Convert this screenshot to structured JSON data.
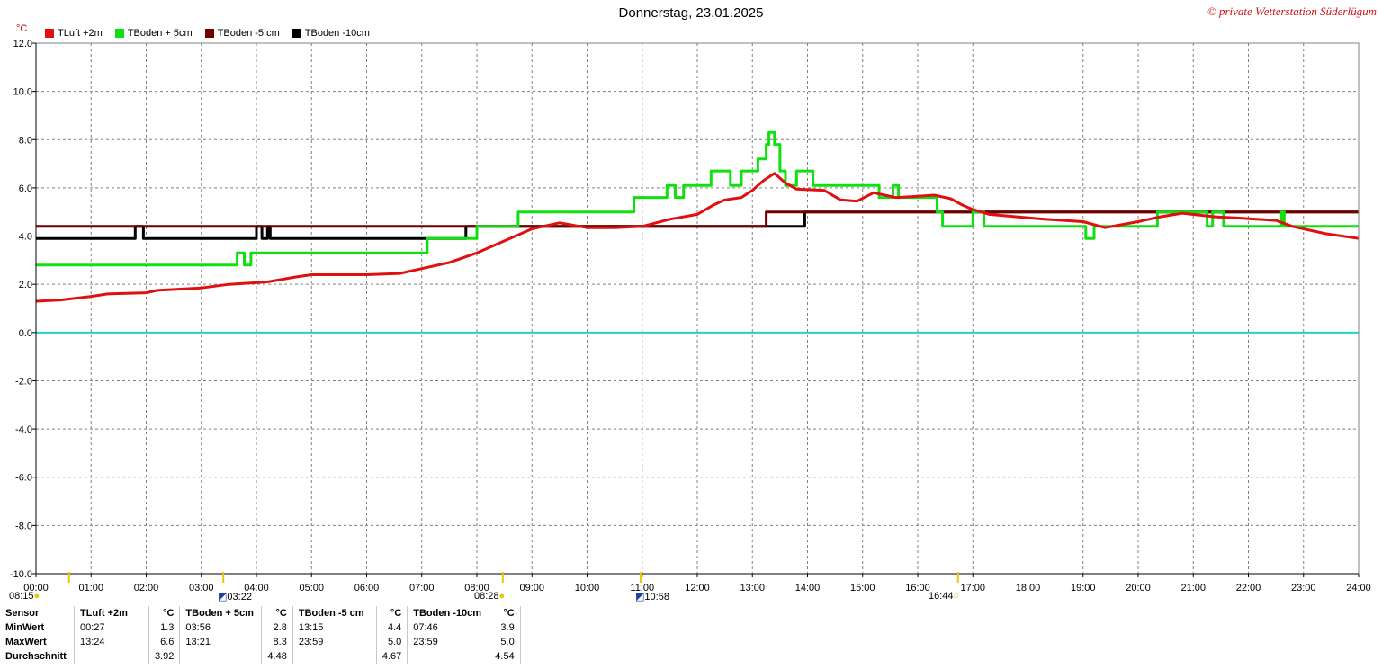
{
  "header": {
    "title": "Donnerstag, 23.01.2025",
    "copyright": "© private Wetterstation Süderlügum",
    "unit": "°C"
  },
  "colors": {
    "tluft": "#e01010",
    "tboden_plus5": "#10e010",
    "tboden_minus5": "#700000",
    "tboden_minus10": "#000000",
    "zero_line": "#20d0d0",
    "grid": "#808080"
  },
  "legend": [
    {
      "label": "TLuft +2m",
      "color": "#e01010"
    },
    {
      "label": "TBoden + 5cm",
      "color": "#10e010"
    },
    {
      "label": "TBoden -5 cm",
      "color": "#700000"
    },
    {
      "label": "TBoden -10cm",
      "color": "#000000"
    }
  ],
  "sun_markers": [
    {
      "label": "08:15",
      "icon": "sun-icon",
      "hour": 0.6
    },
    {
      "label": "03:22",
      "icon": "moon-icon",
      "hour": 3.4
    },
    {
      "label": "08:28",
      "icon": "sunrise-icon",
      "hour": 8.47
    },
    {
      "label": "10:58",
      "icon": "moon-icon",
      "hour": 10.97
    },
    {
      "label": "16:44",
      "icon": "sunset-icon",
      "hour": 16.73
    }
  ],
  "chart_data": {
    "type": "line",
    "title": "Donnerstag, 23.01.2025",
    "ylabel": "°C",
    "xlim": [
      0,
      24
    ],
    "ylim": [
      -10,
      12
    ],
    "grid": true,
    "legend_position": "top-left",
    "x_ticks": [
      "00:00",
      "01:00",
      "02:00",
      "03:00",
      "04:00",
      "05:00",
      "06:00",
      "07:00",
      "08:00",
      "09:00",
      "10:00",
      "11:00",
      "12:00",
      "13:00",
      "14:00",
      "15:00",
      "16:00",
      "17:00",
      "18:00",
      "19:00",
      "20:00",
      "21:00",
      "22:00",
      "23:00",
      "24:00"
    ],
    "y_ticks": [
      "12.0",
      "10.0",
      "8.0",
      "6.0",
      "4.0",
      "2.0",
      "0.0",
      "-2.0",
      "-4.0",
      "-6.0",
      "-8.0",
      "-10.0"
    ],
    "series": [
      {
        "name": "TLuft +2m",
        "color": "#e01010",
        "step": false,
        "points": [
          [
            0,
            1.3
          ],
          [
            0.45,
            1.35
          ],
          [
            1,
            1.5
          ],
          [
            1.3,
            1.6
          ],
          [
            2,
            1.65
          ],
          [
            2.2,
            1.75
          ],
          [
            3,
            1.85
          ],
          [
            3.5,
            2.0
          ],
          [
            4.2,
            2.1
          ],
          [
            4.7,
            2.3
          ],
          [
            5,
            2.4
          ],
          [
            6,
            2.4
          ],
          [
            6.6,
            2.45
          ],
          [
            7,
            2.65
          ],
          [
            7.5,
            2.9
          ],
          [
            8,
            3.3
          ],
          [
            8.5,
            3.8
          ],
          [
            9,
            4.3
          ],
          [
            9.5,
            4.55
          ],
          [
            10,
            4.35
          ],
          [
            10.5,
            4.35
          ],
          [
            11,
            4.4
          ],
          [
            11.5,
            4.7
          ],
          [
            12,
            4.9
          ],
          [
            12.3,
            5.3
          ],
          [
            12.5,
            5.5
          ],
          [
            12.8,
            5.6
          ],
          [
            13,
            5.9
          ],
          [
            13.2,
            6.3
          ],
          [
            13.4,
            6.6
          ],
          [
            13.6,
            6.2
          ],
          [
            13.8,
            5.95
          ],
          [
            14.3,
            5.9
          ],
          [
            14.6,
            5.5
          ],
          [
            14.9,
            5.45
          ],
          [
            15.2,
            5.8
          ],
          [
            15.6,
            5.6
          ],
          [
            16,
            5.65
          ],
          [
            16.3,
            5.7
          ],
          [
            16.6,
            5.55
          ],
          [
            16.8,
            5.3
          ],
          [
            17,
            5.1
          ],
          [
            17.3,
            4.9
          ],
          [
            17.8,
            4.8
          ],
          [
            18.3,
            4.7
          ],
          [
            19,
            4.6
          ],
          [
            19.4,
            4.35
          ],
          [
            20,
            4.6
          ],
          [
            20.4,
            4.8
          ],
          [
            20.8,
            4.95
          ],
          [
            21.4,
            4.8
          ],
          [
            21.8,
            4.75
          ],
          [
            22.5,
            4.65
          ],
          [
            22.8,
            4.4
          ],
          [
            23.4,
            4.1
          ],
          [
            24,
            3.9
          ]
        ]
      },
      {
        "name": "TBoden + 5cm",
        "color": "#10e010",
        "step": true,
        "points": [
          [
            0,
            2.8
          ],
          [
            3.65,
            2.8
          ],
          [
            3.65,
            3.3
          ],
          [
            3.78,
            3.3
          ],
          [
            3.78,
            2.8
          ],
          [
            3.9,
            2.8
          ],
          [
            3.9,
            3.3
          ],
          [
            7.1,
            3.3
          ],
          [
            7.1,
            3.9
          ],
          [
            8.0,
            3.9
          ],
          [
            8.0,
            4.4
          ],
          [
            8.75,
            4.4
          ],
          [
            8.75,
            5.0
          ],
          [
            10.85,
            5.0
          ],
          [
            10.85,
            5.6
          ],
          [
            11.45,
            5.6
          ],
          [
            11.45,
            6.1
          ],
          [
            11.6,
            6.1
          ],
          [
            11.6,
            5.6
          ],
          [
            11.75,
            5.6
          ],
          [
            11.75,
            6.1
          ],
          [
            12.25,
            6.1
          ],
          [
            12.25,
            6.7
          ],
          [
            12.6,
            6.7
          ],
          [
            12.6,
            6.1
          ],
          [
            12.8,
            6.1
          ],
          [
            12.8,
            6.7
          ],
          [
            13.1,
            6.7
          ],
          [
            13.1,
            7.2
          ],
          [
            13.25,
            7.2
          ],
          [
            13.25,
            7.8
          ],
          [
            13.3,
            7.8
          ],
          [
            13.3,
            8.3
          ],
          [
            13.4,
            8.3
          ],
          [
            13.4,
            7.8
          ],
          [
            13.5,
            7.8
          ],
          [
            13.5,
            6.7
          ],
          [
            13.6,
            6.7
          ],
          [
            13.6,
            6.1
          ],
          [
            13.8,
            6.1
          ],
          [
            13.8,
            6.7
          ],
          [
            14.1,
            6.7
          ],
          [
            14.1,
            6.1
          ],
          [
            15.3,
            6.1
          ],
          [
            15.3,
            5.6
          ],
          [
            15.55,
            5.6
          ],
          [
            15.55,
            6.1
          ],
          [
            15.65,
            6.1
          ],
          [
            15.65,
            5.6
          ],
          [
            16.35,
            5.6
          ],
          [
            16.35,
            5.0
          ],
          [
            16.45,
            5.0
          ],
          [
            16.45,
            4.4
          ],
          [
            17.0,
            4.4
          ],
          [
            17.0,
            5.0
          ],
          [
            17.2,
            5.0
          ],
          [
            17.2,
            4.4
          ],
          [
            18.0,
            4.4
          ],
          [
            18.9,
            4.4
          ],
          [
            19.05,
            4.4
          ],
          [
            19.05,
            3.9
          ],
          [
            19.2,
            3.9
          ],
          [
            19.2,
            4.4
          ],
          [
            20.35,
            4.4
          ],
          [
            20.35,
            5.0
          ],
          [
            21.25,
            5.0
          ],
          [
            21.25,
            4.4
          ],
          [
            21.35,
            4.4
          ],
          [
            21.35,
            5.0
          ],
          [
            21.55,
            5.0
          ],
          [
            21.55,
            4.4
          ],
          [
            22.6,
            4.4
          ],
          [
            22.6,
            5.0
          ],
          [
            22.65,
            5.0
          ],
          [
            22.65,
            4.4
          ],
          [
            24,
            4.4
          ]
        ]
      },
      {
        "name": "TBoden -5 cm",
        "color": "#700000",
        "step": true,
        "points": [
          [
            0,
            4.4
          ],
          [
            13.25,
            4.4
          ],
          [
            13.25,
            5.0
          ],
          [
            24,
            5.0
          ]
        ]
      },
      {
        "name": "TBoden -10cm",
        "color": "#000000",
        "step": true,
        "points": [
          [
            0,
            3.9
          ],
          [
            1.8,
            3.9
          ],
          [
            1.8,
            4.4
          ],
          [
            1.95,
            4.4
          ],
          [
            1.95,
            3.9
          ],
          [
            4.0,
            3.9
          ],
          [
            4.0,
            4.4
          ],
          [
            4.1,
            4.4
          ],
          [
            4.1,
            3.9
          ],
          [
            4.2,
            3.9
          ],
          [
            4.2,
            4.4
          ],
          [
            4.25,
            4.4
          ],
          [
            4.25,
            3.9
          ],
          [
            7.8,
            3.9
          ],
          [
            7.8,
            4.4
          ],
          [
            7.95,
            4.4
          ],
          [
            7.95,
            4.4
          ],
          [
            13.95,
            4.4
          ],
          [
            13.95,
            5.0
          ],
          [
            24,
            5.0
          ]
        ]
      }
    ]
  },
  "stats": {
    "headers": [
      "Sensor",
      "TLuft +2m",
      "°C",
      "TBoden + 5cm",
      "°C",
      "TBoden -5 cm",
      "°C",
      "TBoden -10cm",
      "°C"
    ],
    "rows": [
      {
        "label": "MinWert",
        "cells": [
          "00:27",
          "1.3",
          "03:56",
          "2.8",
          "13:15",
          "4.4",
          "07:46",
          "3.9"
        ]
      },
      {
        "label": "MaxWert",
        "cells": [
          "13:24",
          "6.6",
          "13:21",
          "8.3",
          "23:59",
          "5.0",
          "23:59",
          "5.0"
        ]
      },
      {
        "label": "Durchschnitt",
        "cells": [
          "",
          "3.92",
          "",
          "4.48",
          "",
          "4.67",
          "",
          "4.54"
        ]
      }
    ]
  }
}
